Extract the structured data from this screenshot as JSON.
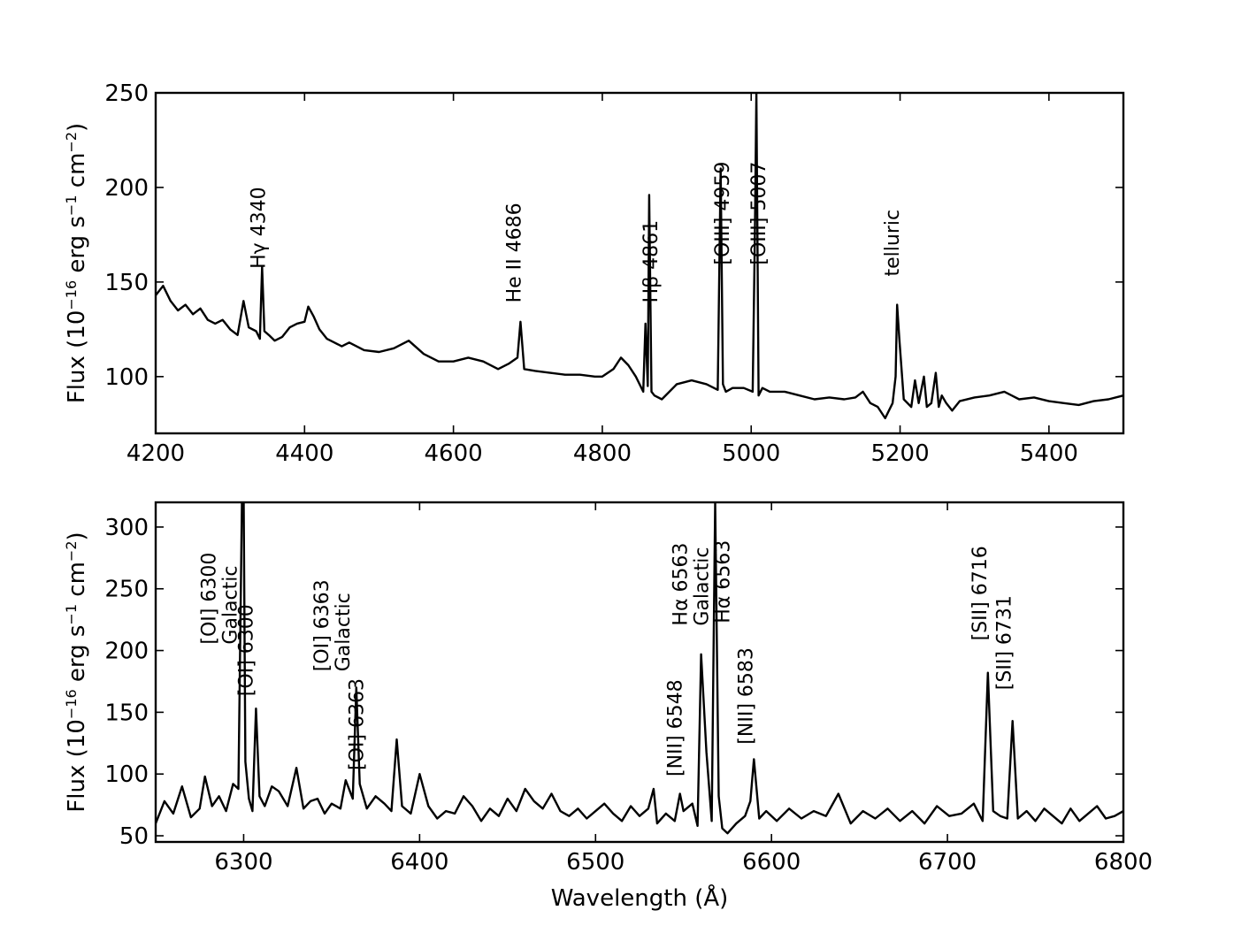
{
  "chart_data": [
    {
      "type": "line",
      "xlabel": "",
      "ylabel": "Flux (10^{-16} erg s^{-1} cm^{-2})",
      "ylabel_parts": {
        "pre": "Flux (10",
        "exp1": "−16",
        "mid": " erg s",
        "exp2": "−1",
        "mid2": " cm",
        "exp3": "−2",
        "post": ")"
      },
      "xlim": [
        4200,
        5500
      ],
      "ylim": [
        70,
        250
      ],
      "xticks": [
        4200,
        4400,
        4600,
        4800,
        5000,
        5200,
        5400
      ],
      "yticks": [
        100,
        150,
        200,
        250
      ],
      "grid": false,
      "series": [
        {
          "x": [
            4200,
            4210,
            4220,
            4230,
            4240,
            4250,
            4260,
            4270,
            4280,
            4290,
            4300,
            4310,
            4318,
            4325,
            4335,
            4340,
            4343,
            4346,
            4352,
            4360,
            4370,
            4380,
            4390,
            4400,
            4405,
            4412,
            4420,
            4430,
            4440,
            4450,
            4460,
            4480,
            4500,
            4520,
            4540,
            4560,
            4580,
            4600,
            4620,
            4640,
            4660,
            4675,
            4686,
            4690,
            4695,
            4710,
            4730,
            4750,
            4770,
            4790,
            4800,
            4815,
            4825,
            4835,
            4845,
            4855,
            4858,
            4861,
            4863,
            4866,
            4870,
            4880,
            4900,
            4920,
            4940,
            4955,
            4959,
            4962,
            4966,
            4975,
            4990,
            5002,
            5005,
            5007,
            5010,
            5015,
            5025,
            5045,
            5065,
            5085,
            5105,
            5125,
            5140,
            5150,
            5160,
            5170,
            5180,
            5185,
            5190,
            5194,
            5196,
            5199,
            5205,
            5215,
            5220,
            5225,
            5232,
            5236,
            5242,
            5248,
            5252,
            5256,
            5262,
            5270,
            5280,
            5300,
            5320,
            5340,
            5360,
            5380,
            5400,
            5420,
            5440,
            5460,
            5480,
            5500
          ],
          "y": [
            143,
            148,
            140,
            135,
            138,
            133,
            136,
            130,
            128,
            130,
            125,
            122,
            140,
            126,
            124,
            120,
            158,
            124,
            122,
            119,
            121,
            126,
            128,
            129,
            137,
            132,
            125,
            120,
            118,
            116,
            118,
            114,
            113,
            115,
            119,
            112,
            108,
            108,
            110,
            108,
            104,
            107,
            110,
            129,
            104,
            103,
            102,
            101,
            101,
            100,
            100,
            104,
            110,
            106,
            100,
            92,
            128,
            95,
            196,
            92,
            90,
            88,
            96,
            98,
            96,
            93,
            210,
            96,
            92,
            94,
            94,
            92,
            175,
            250,
            90,
            94,
            92,
            92,
            90,
            88,
            89,
            88,
            89,
            92,
            86,
            84,
            78,
            82,
            86,
            100,
            138,
            120,
            88,
            84,
            98,
            86,
            100,
            84,
            86,
            102,
            84,
            90,
            86,
            82,
            87,
            89,
            90,
            92,
            88,
            89,
            87,
            86,
            85,
            87,
            88,
            90
          ]
        }
      ],
      "annotations": [
        {
          "text": "Hγ 4340",
          "x": 4347,
          "y": 157
        },
        {
          "text": "He II 4686",
          "x": 4690,
          "y": 139
        },
        {
          "text": "Hβ 4861",
          "x": 4874,
          "y": 139
        },
        {
          "text": "[OIII] 4959",
          "x": 4970,
          "y": 159
        },
        {
          "text": "[OIII] 5007",
          "x": 5019,
          "y": 159
        },
        {
          "text": "telluric",
          "x": 5198,
          "y": 153
        }
      ]
    },
    {
      "type": "line",
      "xlabel": "Wavelength (Å)",
      "ylabel": "Flux (10^{-16} erg s^{-1} cm^{-2})",
      "ylabel_parts": {
        "pre": "Flux (10",
        "exp1": "−16",
        "mid": " erg s",
        "exp2": "−1",
        "mid2": " cm",
        "exp3": "−2",
        "post": ")"
      },
      "xlim": [
        6250,
        6800
      ],
      "ylim": [
        45,
        320
      ],
      "xticks": [
        6300,
        6400,
        6500,
        6600,
        6700,
        6800
      ],
      "yticks": [
        50,
        100,
        150,
        200,
        250,
        300
      ],
      "grid": false,
      "series": [
        {
          "x": [
            6250,
            6255,
            6260,
            6265,
            6270,
            6275,
            6278,
            6282,
            6286,
            6290,
            6294,
            6297,
            6299,
            6300,
            6301,
            6303,
            6305,
            6307,
            6309,
            6312,
            6316,
            6320,
            6325,
            6330,
            6334,
            6338,
            6342,
            6346,
            6350,
            6355,
            6358,
            6362,
            6364,
            6366,
            6370,
            6375,
            6380,
            6384,
            6387,
            6390,
            6395,
            6400,
            6405,
            6410,
            6415,
            6420,
            6425,
            6430,
            6435,
            6440,
            6445,
            6450,
            6455,
            6460,
            6465,
            6470,
            6475,
            6480,
            6485,
            6490,
            6495,
            6500,
            6505,
            6510,
            6515,
            6520,
            6525,
            6530,
            6533,
            6535,
            6540,
            6545,
            6548,
            6550,
            6555,
            6558,
            6560,
            6563,
            6566,
            6568,
            6570,
            6572,
            6575,
            6580,
            6585,
            6588,
            6590,
            6593,
            6597,
            6603,
            6610,
            6617,
            6624,
            6631,
            6638,
            6645,
            6652,
            6659,
            6666,
            6673,
            6680,
            6687,
            6694,
            6701,
            6708,
            6715,
            6720,
            6723,
            6726,
            6730,
            6734,
            6737,
            6740,
            6745,
            6750,
            6755,
            6760,
            6765,
            6770,
            6775,
            6780,
            6785,
            6790,
            6795,
            6800
          ],
          "y": [
            60,
            78,
            68,
            90,
            65,
            72,
            98,
            74,
            82,
            70,
            92,
            88,
            320,
            320,
            110,
            80,
            70,
            153,
            82,
            74,
            90,
            86,
            74,
            105,
            72,
            78,
            80,
            68,
            76,
            72,
            95,
            80,
            170,
            92,
            72,
            82,
            76,
            70,
            128,
            74,
            68,
            100,
            74,
            64,
            70,
            68,
            82,
            74,
            62,
            72,
            66,
            80,
            70,
            88,
            78,
            72,
            84,
            70,
            66,
            72,
            64,
            70,
            76,
            68,
            62,
            74,
            66,
            72,
            88,
            60,
            68,
            62,
            84,
            70,
            76,
            58,
            197,
            118,
            62,
            320,
            82,
            56,
            52,
            60,
            66,
            78,
            112,
            64,
            70,
            62,
            72,
            64,
            70,
            66,
            84,
            60,
            70,
            64,
            72,
            62,
            70,
            60,
            74,
            66,
            68,
            76,
            62,
            182,
            70,
            66,
            64,
            143,
            64,
            70,
            62,
            72,
            66,
            60,
            72,
            62,
            68,
            74,
            64,
            66,
            70
          ]
        }
      ],
      "annotations": [
        {
          "text": "[OI] 6300",
          "x": 6290,
          "y": 205
        },
        {
          "text": "Galactic",
          "x": 6290,
          "y": 205
        },
        {
          "text": "[OI] 6300",
          "x": 6305,
          "y": 163
        },
        {
          "text": "[OI] 6363",
          "x": 6354,
          "y": 183
        },
        {
          "text": "Galactic",
          "x": 6354,
          "y": 183
        },
        {
          "text": "[OI] 6363",
          "x": 6368,
          "y": 103
        },
        {
          "text": "[NII] 6548",
          "x": 6549,
          "y": 98
        },
        {
          "text": "Hα 6563",
          "x": 6558,
          "y": 220
        },
        {
          "text": "Galactic",
          "x": 6558,
          "y": 220
        },
        {
          "text": "Hα 6563",
          "x": 6576,
          "y": 222
        },
        {
          "text": "[NII] 6583",
          "x": 6589,
          "y": 124
        },
        {
          "text": "[SII] 6716",
          "x": 6722,
          "y": 208
        },
        {
          "text": "[SII] 6731",
          "x": 6736,
          "y": 168
        }
      ]
    }
  ]
}
